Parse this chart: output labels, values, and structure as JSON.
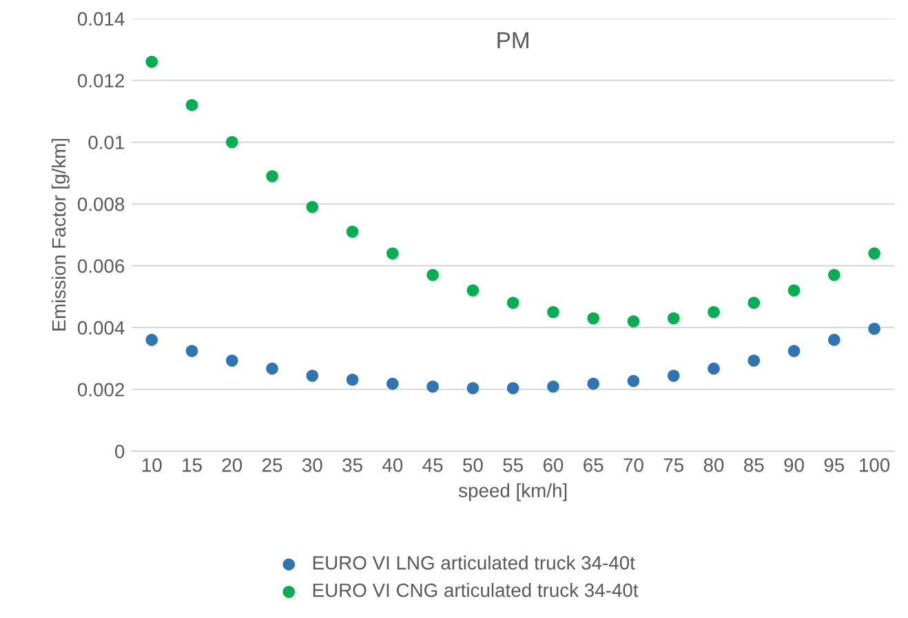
{
  "chart_data": {
    "type": "scatter",
    "title": "PM",
    "xlabel": "speed [km/h]",
    "ylabel": "Emission Factor [g/km]",
    "categories": [
      "10",
      "15",
      "20",
      "25",
      "30",
      "35",
      "40",
      "45",
      "50",
      "55",
      "60",
      "65",
      "70",
      "75",
      "80",
      "85",
      "90",
      "95",
      "100"
    ],
    "series": [
      {
        "name": "EURO VI LNG articulated truck 34-40t",
        "color": "#2e75b6",
        "values": [
          0.0036,
          0.00324,
          0.00293,
          0.00267,
          0.00244,
          0.00231,
          0.00218,
          0.00209,
          0.00204,
          0.00204,
          0.00209,
          0.00218,
          0.00227,
          0.00244,
          0.00267,
          0.00293,
          0.00324,
          0.0036,
          0.00396
        ]
      },
      {
        "name": "EURO VI CNG articulated truck 34-40t",
        "color": "#00b050",
        "values": [
          0.0126,
          0.0112,
          0.01,
          0.0089,
          0.0079,
          0.0071,
          0.0064,
          0.0057,
          0.0052,
          0.0048,
          0.0045,
          0.0043,
          0.0042,
          0.0043,
          0.0045,
          0.0048,
          0.0052,
          0.0057,
          0.0064
        ]
      }
    ],
    "ylim": [
      0,
      0.014
    ],
    "yticks": [
      0,
      0.002,
      0.004,
      0.006,
      0.008,
      0.01,
      0.012,
      0.014
    ],
    "grid": "y",
    "legend": "bottom",
    "marker": "circle"
  }
}
